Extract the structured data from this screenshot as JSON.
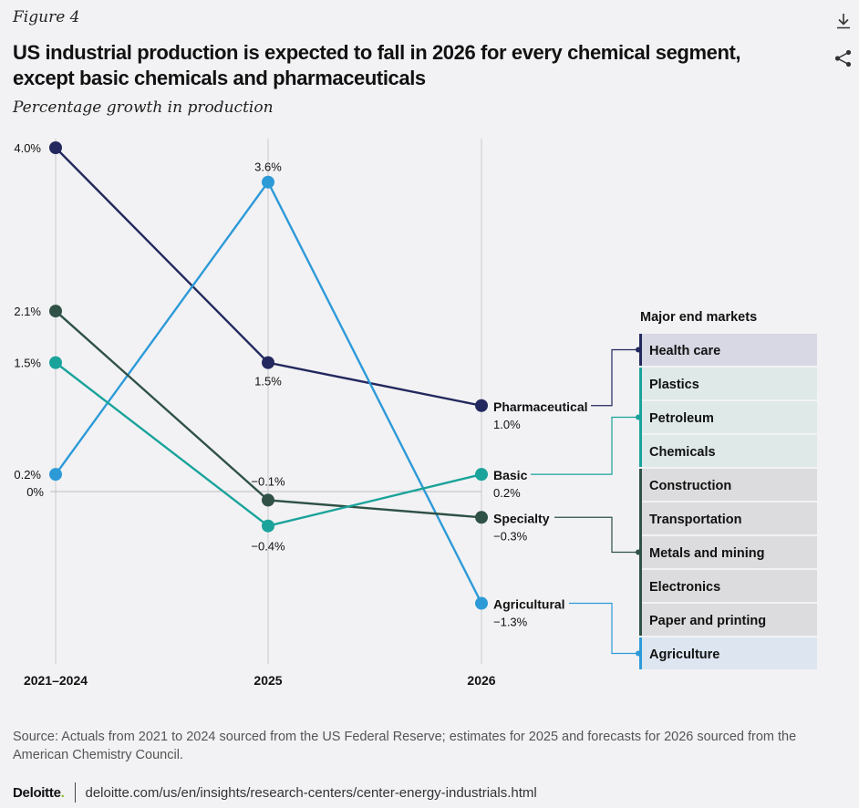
{
  "header": {
    "figure_label": "Figure 4",
    "title": "US industrial production is expected to fall in 2026 for every chemical segment, except basic chemicals and pharmaceuticals",
    "subtitle": "Percentage growth in production"
  },
  "icons": {
    "download": "download-icon",
    "share": "share-icon"
  },
  "chart_data": {
    "type": "line",
    "categories": [
      "2021–2024",
      "2025",
      "2026"
    ],
    "ylim": [
      -2.0,
      4.0
    ],
    "zero_label": "0%",
    "series": [
      {
        "name": "Pharmaceutical",
        "color": "#23295e",
        "values": [
          4.0,
          1.5,
          1.0
        ],
        "labels": [
          "4.0%",
          "1.5%",
          "1.0%"
        ]
      },
      {
        "name": "Agricultural",
        "color": "#2d9ad8",
        "values": [
          0.2,
          3.6,
          -1.3
        ],
        "labels": [
          "0.2%",
          "3.6%",
          "−1.3%"
        ]
      },
      {
        "name": "Specialty",
        "color": "#2f5146",
        "values": [
          2.1,
          -0.1,
          -0.3
        ],
        "labels": [
          "2.1%",
          "−0.1%",
          "−0.3%"
        ]
      },
      {
        "name": "Basic",
        "color": "#1aa39b",
        "values": [
          1.5,
          -0.4,
          0.2
        ],
        "labels": [
          "1.5%",
          "−0.4%",
          "0.2%"
        ]
      }
    ],
    "end_markets": {
      "title": "Major end markets",
      "items": [
        {
          "label": "Health care",
          "segment": "Pharmaceutical"
        },
        {
          "label": "Plastics",
          "segment": "Basic"
        },
        {
          "label": "Petroleum",
          "segment": "Basic"
        },
        {
          "label": "Chemicals",
          "segment": "Basic"
        },
        {
          "label": "Construction",
          "segment": "Specialty"
        },
        {
          "label": "Transportation",
          "segment": "Specialty"
        },
        {
          "label": "Metals and mining",
          "segment": "Specialty"
        },
        {
          "label": "Electronics",
          "segment": "Specialty"
        },
        {
          "label": "Paper and printing",
          "segment": "Specialty"
        },
        {
          "label": "Agriculture",
          "segment": "Agricultural"
        }
      ],
      "fills": {
        "Pharmaceutical": "#d8d8e4",
        "Basic": "#dfe9e8",
        "Specialty": "#dcdcde",
        "Agricultural": "#dde6f0"
      }
    }
  },
  "footer": {
    "source": "Source: Actuals from 2021 to 2024 sourced from the US Federal Reserve; estimates for 2025 and forecasts for 2026 sourced from the American Chemistry Council.",
    "brand": "Deloitte",
    "brand_dot": ".",
    "url": "deloitte.com/us/en/insights/research-centers/center-energy-industrials.html"
  }
}
